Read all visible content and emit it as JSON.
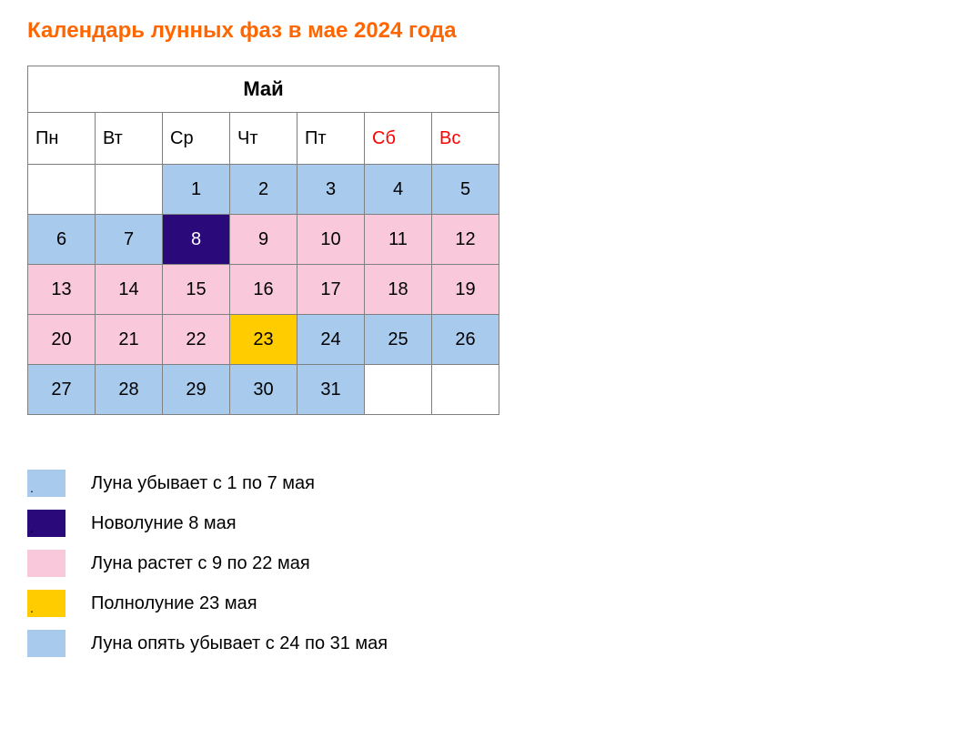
{
  "title": {
    "text": "Календарь лунных фаз в мае 2024 года",
    "color": "#ff6600"
  },
  "calendar": {
    "month_label": "Май",
    "weekdays": [
      {
        "label": "Пн",
        "color": "#000000"
      },
      {
        "label": "Вт",
        "color": "#000000"
      },
      {
        "label": "Ср",
        "color": "#000000"
      },
      {
        "label": "Чт",
        "color": "#000000"
      },
      {
        "label": "Пт",
        "color": "#000000"
      },
      {
        "label": "Сб",
        "color": "#ff0000"
      },
      {
        "label": "Вс",
        "color": "#ff0000"
      }
    ],
    "phase_colors": {
      "waning": "#a7caed",
      "newmoon": "#2a0a7a",
      "waxing": "#f9c9db",
      "fullmoon": "#ffcc00",
      "empty": "#ffffff"
    },
    "newmoon_text_color": "#ffffff",
    "default_text_color": "#000000",
    "weeks": [
      [
        {
          "day": "",
          "phase": "empty"
        },
        {
          "day": "",
          "phase": "empty"
        },
        {
          "day": "1",
          "phase": "waning"
        },
        {
          "day": "2",
          "phase": "waning"
        },
        {
          "day": "3",
          "phase": "waning"
        },
        {
          "day": "4",
          "phase": "waning"
        },
        {
          "day": "5",
          "phase": "waning"
        }
      ],
      [
        {
          "day": "6",
          "phase": "waning"
        },
        {
          "day": "7",
          "phase": "waning"
        },
        {
          "day": "8",
          "phase": "newmoon"
        },
        {
          "day": "9",
          "phase": "waxing"
        },
        {
          "day": "10",
          "phase": "waxing"
        },
        {
          "day": "11",
          "phase": "waxing"
        },
        {
          "day": "12",
          "phase": "waxing"
        }
      ],
      [
        {
          "day": "13",
          "phase": "waxing"
        },
        {
          "day": "14",
          "phase": "waxing"
        },
        {
          "day": "15",
          "phase": "waxing"
        },
        {
          "day": "16",
          "phase": "waxing"
        },
        {
          "day": "17",
          "phase": "waxing"
        },
        {
          "day": "18",
          "phase": "waxing"
        },
        {
          "day": "19",
          "phase": "waxing"
        }
      ],
      [
        {
          "day": "20",
          "phase": "waxing"
        },
        {
          "day": "21",
          "phase": "waxing"
        },
        {
          "day": "22",
          "phase": "waxing"
        },
        {
          "day": "23",
          "phase": "fullmoon"
        },
        {
          "day": "24",
          "phase": "waning"
        },
        {
          "day": "25",
          "phase": "waning"
        },
        {
          "day": "26",
          "phase": "waning"
        }
      ],
      [
        {
          "day": "27",
          "phase": "waning"
        },
        {
          "day": "28",
          "phase": "waning"
        },
        {
          "day": "29",
          "phase": "waning"
        },
        {
          "day": "30",
          "phase": "waning"
        },
        {
          "day": "31",
          "phase": "waning"
        },
        {
          "day": "",
          "phase": "empty"
        },
        {
          "day": "",
          "phase": "empty"
        }
      ]
    ]
  },
  "legend": {
    "items": [
      {
        "color_key": "waning",
        "dot": ".",
        "dot_color": "#000000",
        "label": "Луна убывает с 1 по 7 мая"
      },
      {
        "color_key": "newmoon",
        "dot": ".",
        "dot_color": "#000000",
        "label": "Новолуние 8 мая"
      },
      {
        "color_key": "waxing",
        "dot": "",
        "dot_color": "#000000",
        "label": "Луна растет с 9 по 22 мая"
      },
      {
        "color_key": "fullmoon",
        "dot": ".",
        "dot_color": "#000000",
        "label": "Полнолуние 23 мая"
      },
      {
        "color_key": "waning",
        "dot": "",
        "dot_color": "#000000",
        "label": "Луна опять убывает с 24 по 31 мая"
      }
    ]
  }
}
